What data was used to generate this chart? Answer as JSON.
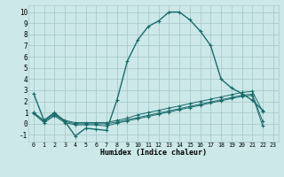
{
  "xlabel": "Humidex (Indice chaleur)",
  "bg_color": "#cce8e8",
  "grid_color": "#aacccc",
  "line_color": "#1a6b6b",
  "xlim": [
    -0.5,
    23.5
  ],
  "ylim": [
    -1.6,
    10.6
  ],
  "xticks": [
    0,
    1,
    2,
    3,
    4,
    5,
    6,
    7,
    8,
    9,
    10,
    11,
    12,
    13,
    14,
    15,
    16,
    17,
    18,
    19,
    20,
    21,
    22,
    23
  ],
  "yticks": [
    -1,
    0,
    1,
    2,
    3,
    4,
    5,
    6,
    7,
    8,
    9,
    10
  ],
  "series": [
    {
      "x": [
        0,
        1,
        2,
        3,
        4,
        5,
        6,
        7,
        8,
        9,
        10,
        11,
        12,
        13,
        14,
        15,
        16,
        17,
        18,
        19,
        20,
        21,
        22
      ],
      "y": [
        2.7,
        0.3,
        1.0,
        0.2,
        -1.1,
        -0.4,
        -0.5,
        -0.6,
        2.1,
        5.6,
        7.5,
        8.7,
        9.2,
        10.0,
        10.0,
        9.3,
        8.3,
        7.0,
        4.0,
        3.2,
        2.7,
        2.1,
        1.2
      ]
    },
    {
      "x": [
        0,
        1,
        2,
        3,
        4,
        5,
        6,
        7,
        8,
        9,
        10,
        11,
        12,
        13,
        14,
        15,
        16,
        17,
        18,
        19,
        20,
        21,
        22
      ],
      "y": [
        1.0,
        0.3,
        0.9,
        0.3,
        0.1,
        0.1,
        0.1,
        0.1,
        0.3,
        0.5,
        0.8,
        1.0,
        1.2,
        1.4,
        1.6,
        1.8,
        2.0,
        2.2,
        2.4,
        2.6,
        2.8,
        2.9,
        1.1
      ]
    },
    {
      "x": [
        0,
        1,
        2,
        3,
        4,
        5,
        6,
        7,
        8,
        9,
        10,
        11,
        12,
        13,
        14,
        15,
        16,
        17,
        18,
        19,
        20,
        21,
        22
      ],
      "y": [
        1.0,
        0.2,
        0.8,
        0.2,
        0.0,
        0.0,
        0.0,
        0.0,
        0.15,
        0.35,
        0.55,
        0.75,
        0.95,
        1.15,
        1.35,
        1.55,
        1.75,
        1.95,
        2.15,
        2.35,
        2.55,
        2.65,
        0.2
      ]
    },
    {
      "x": [
        0,
        1,
        2,
        3,
        4,
        5,
        6,
        7,
        8,
        9,
        10,
        11,
        12,
        13,
        14,
        15,
        16,
        17,
        18,
        19,
        20,
        21,
        22
      ],
      "y": [
        0.9,
        0.1,
        0.7,
        0.1,
        -0.1,
        -0.1,
        -0.1,
        -0.2,
        0.05,
        0.25,
        0.45,
        0.65,
        0.85,
        1.05,
        1.25,
        1.45,
        1.65,
        1.85,
        2.05,
        2.25,
        2.45,
        2.55,
        -0.2
      ]
    }
  ]
}
